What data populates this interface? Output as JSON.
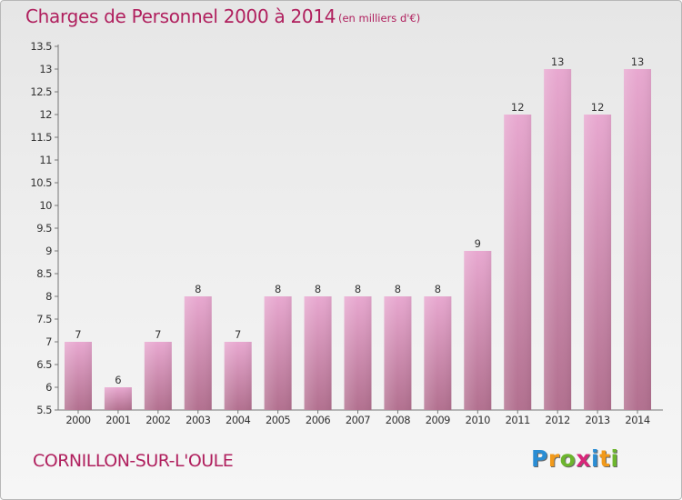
{
  "title": "Charges de Personnel 2000 à 2014",
  "subtitle": "(en milliers d'€)",
  "commune": "CORNILLON-SUR-L'OULE",
  "logo": {
    "letters": [
      "P",
      "r",
      "o",
      "x",
      "i",
      "t",
      "i"
    ],
    "colors": [
      "#2a8dd4",
      "#f29a1a",
      "#6cb52d",
      "#d8267a",
      "#2a8dd4",
      "#f29a1a",
      "#6cb52d"
    ]
  },
  "colors": {
    "bar_top": "#e8a8d0",
    "bar_bottom": "#b2708f",
    "axis_text": "#333333",
    "title": "#b0205e"
  },
  "chart_data": {
    "type": "bar",
    "categories": [
      "2000",
      "2001",
      "2002",
      "2003",
      "2004",
      "2005",
      "2006",
      "2007",
      "2008",
      "2009",
      "2010",
      "2011",
      "2012",
      "2013",
      "2014"
    ],
    "values": [
      7,
      6,
      7,
      8,
      7,
      8,
      8,
      8,
      8,
      8,
      9,
      12,
      13,
      12,
      13
    ],
    "data_labels": [
      "7",
      "6",
      "7",
      "8",
      "7",
      "8",
      "8",
      "8",
      "8",
      "8",
      "9",
      "12",
      "13",
      "12",
      "13"
    ],
    "ylim": [
      5.5,
      13.5
    ],
    "yticks": [
      "5.5",
      "6",
      "6.5",
      "7",
      "7.5",
      "8",
      "8.5",
      "9",
      "9.5",
      "10",
      "10.5",
      "11",
      "11.5",
      "12",
      "12.5",
      "13",
      "13.5"
    ],
    "grid": false,
    "xlabel": "",
    "ylabel": ""
  }
}
